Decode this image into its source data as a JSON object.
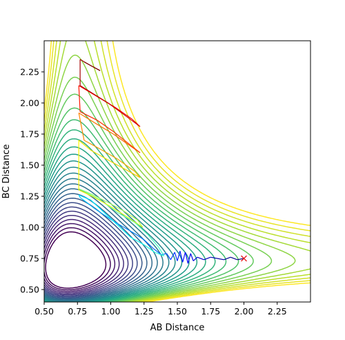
{
  "chart_data": {
    "type": "contour",
    "title": "",
    "xlabel": "AB Distance",
    "ylabel": "BC Distance",
    "xlim": [
      0.5,
      2.5
    ],
    "ylim": [
      0.4,
      2.5
    ],
    "xticks": [
      "0.50",
      "0.75",
      "1.00",
      "1.25",
      "1.50",
      "1.75",
      "2.00",
      "2.25"
    ],
    "yticks": [
      "0.50",
      "0.75",
      "1.00",
      "1.25",
      "1.50",
      "1.75",
      "2.00",
      "2.25"
    ],
    "xtick_values": [
      0.5,
      0.75,
      1.0,
      1.25,
      1.5,
      1.75,
      2.0,
      2.25
    ],
    "ytick_values": [
      0.5,
      0.75,
      1.0,
      1.25,
      1.5,
      1.75,
      2.0,
      2.25
    ],
    "grid": false,
    "colormap": "viridis",
    "contour_levels": 30,
    "marker": {
      "symbol": "x",
      "color": "#e8191c",
      "x": 2.0,
      "y": 0.75
    },
    "trajectory": {
      "color_scheme": "jet",
      "points": [
        [
          2.0,
          0.75
        ],
        [
          1.95,
          0.74
        ],
        [
          1.9,
          0.76
        ],
        [
          1.85,
          0.74
        ],
        [
          1.8,
          0.75
        ],
        [
          1.75,
          0.76
        ],
        [
          1.7,
          0.74
        ],
        [
          1.65,
          0.76
        ],
        [
          1.62,
          0.73
        ],
        [
          1.6,
          0.79
        ],
        [
          1.58,
          0.71
        ],
        [
          1.56,
          0.8
        ],
        [
          1.54,
          0.72
        ],
        [
          1.52,
          0.81
        ],
        [
          1.5,
          0.73
        ],
        [
          1.48,
          0.8
        ],
        [
          1.45,
          0.74
        ],
        [
          1.42,
          0.79
        ],
        [
          1.38,
          0.78
        ],
        [
          1.32,
          0.83
        ],
        [
          1.25,
          0.9
        ],
        [
          1.18,
          0.95
        ],
        [
          1.1,
          1.0
        ],
        [
          1.02,
          1.05
        ],
        [
          0.95,
          1.1
        ],
        [
          0.88,
          1.15
        ],
        [
          0.82,
          1.2
        ],
        [
          0.77,
          1.24
        ],
        [
          0.76,
          1.26
        ],
        [
          0.85,
          1.22
        ],
        [
          0.95,
          1.12
        ],
        [
          1.05,
          1.02
        ],
        [
          1.15,
          0.92
        ],
        [
          1.25,
          0.86
        ],
        [
          1.33,
          0.8
        ],
        [
          1.4,
          0.77
        ],
        [
          1.36,
          0.84
        ],
        [
          1.28,
          0.94
        ],
        [
          1.18,
          1.04
        ],
        [
          1.05,
          1.12
        ],
        [
          0.92,
          1.22
        ],
        [
          0.8,
          1.29
        ],
        [
          0.76,
          1.31
        ],
        [
          0.85,
          1.27
        ],
        [
          0.98,
          1.2
        ],
        [
          1.1,
          1.13
        ],
        [
          1.2,
          1.06
        ],
        [
          1.24,
          1.0
        ],
        [
          1.2,
          1.03
        ],
        [
          1.1,
          1.1
        ],
        [
          0.98,
          1.18
        ],
        [
          0.86,
          1.25
        ],
        [
          0.76,
          1.3
        ],
        [
          0.76,
          1.7
        ],
        [
          0.85,
          1.62
        ],
        [
          1.0,
          1.53
        ],
        [
          1.12,
          1.46
        ],
        [
          1.22,
          1.4
        ],
        [
          1.18,
          1.45
        ],
        [
          1.05,
          1.55
        ],
        [
          0.92,
          1.63
        ],
        [
          0.8,
          1.7
        ],
        [
          0.76,
          1.92
        ],
        [
          0.88,
          1.84
        ],
        [
          1.02,
          1.75
        ],
        [
          1.14,
          1.66
        ],
        [
          1.22,
          1.6
        ],
        [
          1.15,
          1.66
        ],
        [
          1.02,
          1.77
        ],
        [
          0.9,
          1.86
        ],
        [
          0.77,
          1.93
        ],
        [
          0.76,
          2.14
        ],
        [
          0.9,
          2.05
        ],
        [
          1.04,
          1.96
        ],
        [
          1.16,
          1.87
        ],
        [
          1.22,
          1.81
        ],
        [
          1.12,
          1.89
        ],
        [
          0.98,
          2.0
        ],
        [
          0.86,
          2.08
        ],
        [
          0.77,
          2.14
        ],
        [
          0.77,
          2.35
        ],
        [
          0.85,
          2.3
        ],
        [
          0.92,
          2.26
        ],
        [
          0.8,
          2.33
        ]
      ]
    }
  }
}
